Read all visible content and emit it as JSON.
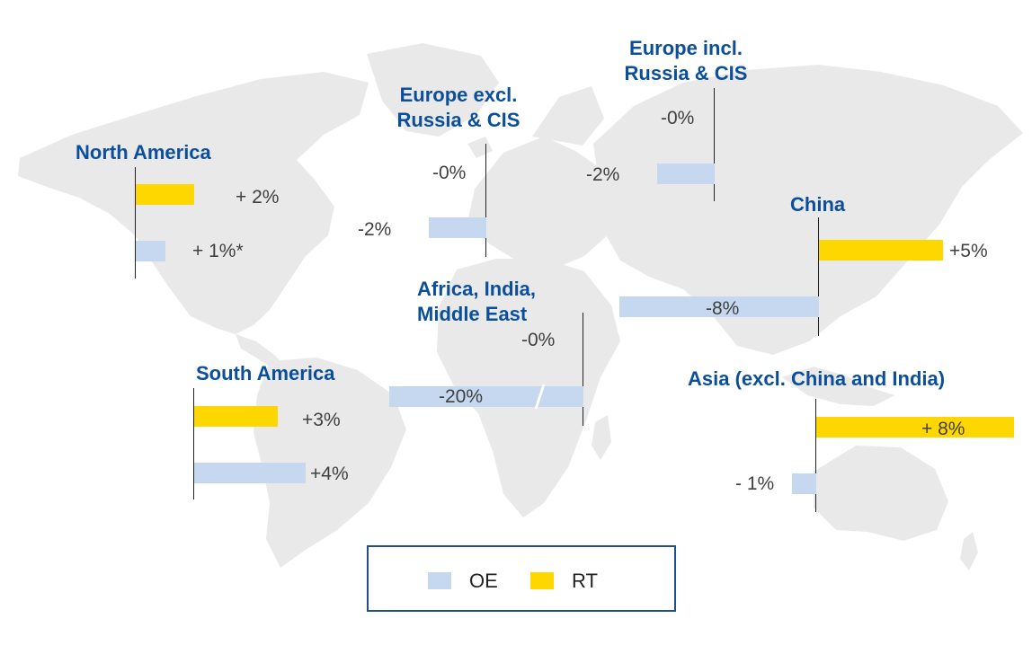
{
  "legend": {
    "oe_label": "OE",
    "rt_label": "RT"
  },
  "colors": {
    "oe": "#c5d8ef",
    "rt": "#ffd700",
    "title": "#0b4f9c",
    "map": "#e9e9e9"
  },
  "chart_data": {
    "type": "bar",
    "regions": [
      {
        "name": "North America",
        "series": {
          "RT": 2,
          "OE": 1
        },
        "labels": {
          "RT": "+ 2%",
          "OE": "+ 1%*"
        }
      },
      {
        "name": "South America",
        "series": {
          "RT": 3,
          "OE": 4
        },
        "labels": {
          "RT": "+3%",
          "OE": "+4%"
        }
      },
      {
        "name": "Europe excl. Russia & CIS",
        "series": {
          "RT": 0,
          "OE": -2
        },
        "labels": {
          "RT": "-0%",
          "OE": "-2%"
        }
      },
      {
        "name": "Europe incl. Russia & CIS",
        "series": {
          "RT": 0,
          "OE": -2
        },
        "labels": {
          "RT": "-0%",
          "OE": "-2%"
        }
      },
      {
        "name": "Africa, India, Middle East",
        "series": {
          "RT": 0,
          "OE": -20
        },
        "labels": {
          "RT": "-0%",
          "OE": "-20%"
        }
      },
      {
        "name": "China",
        "series": {
          "RT": 5,
          "OE": -8
        },
        "labels": {
          "RT": "+5%",
          "OE": "-8%"
        }
      },
      {
        "name": "Asia (excl. China and India)",
        "series": {
          "RT": 8,
          "OE": -1
        },
        "labels": {
          "RT": "+ 8%",
          "OE": "- 1%"
        }
      }
    ],
    "legend": [
      "OE",
      "RT"
    ],
    "legend_position": "bottom-center",
    "background": "world map"
  }
}
